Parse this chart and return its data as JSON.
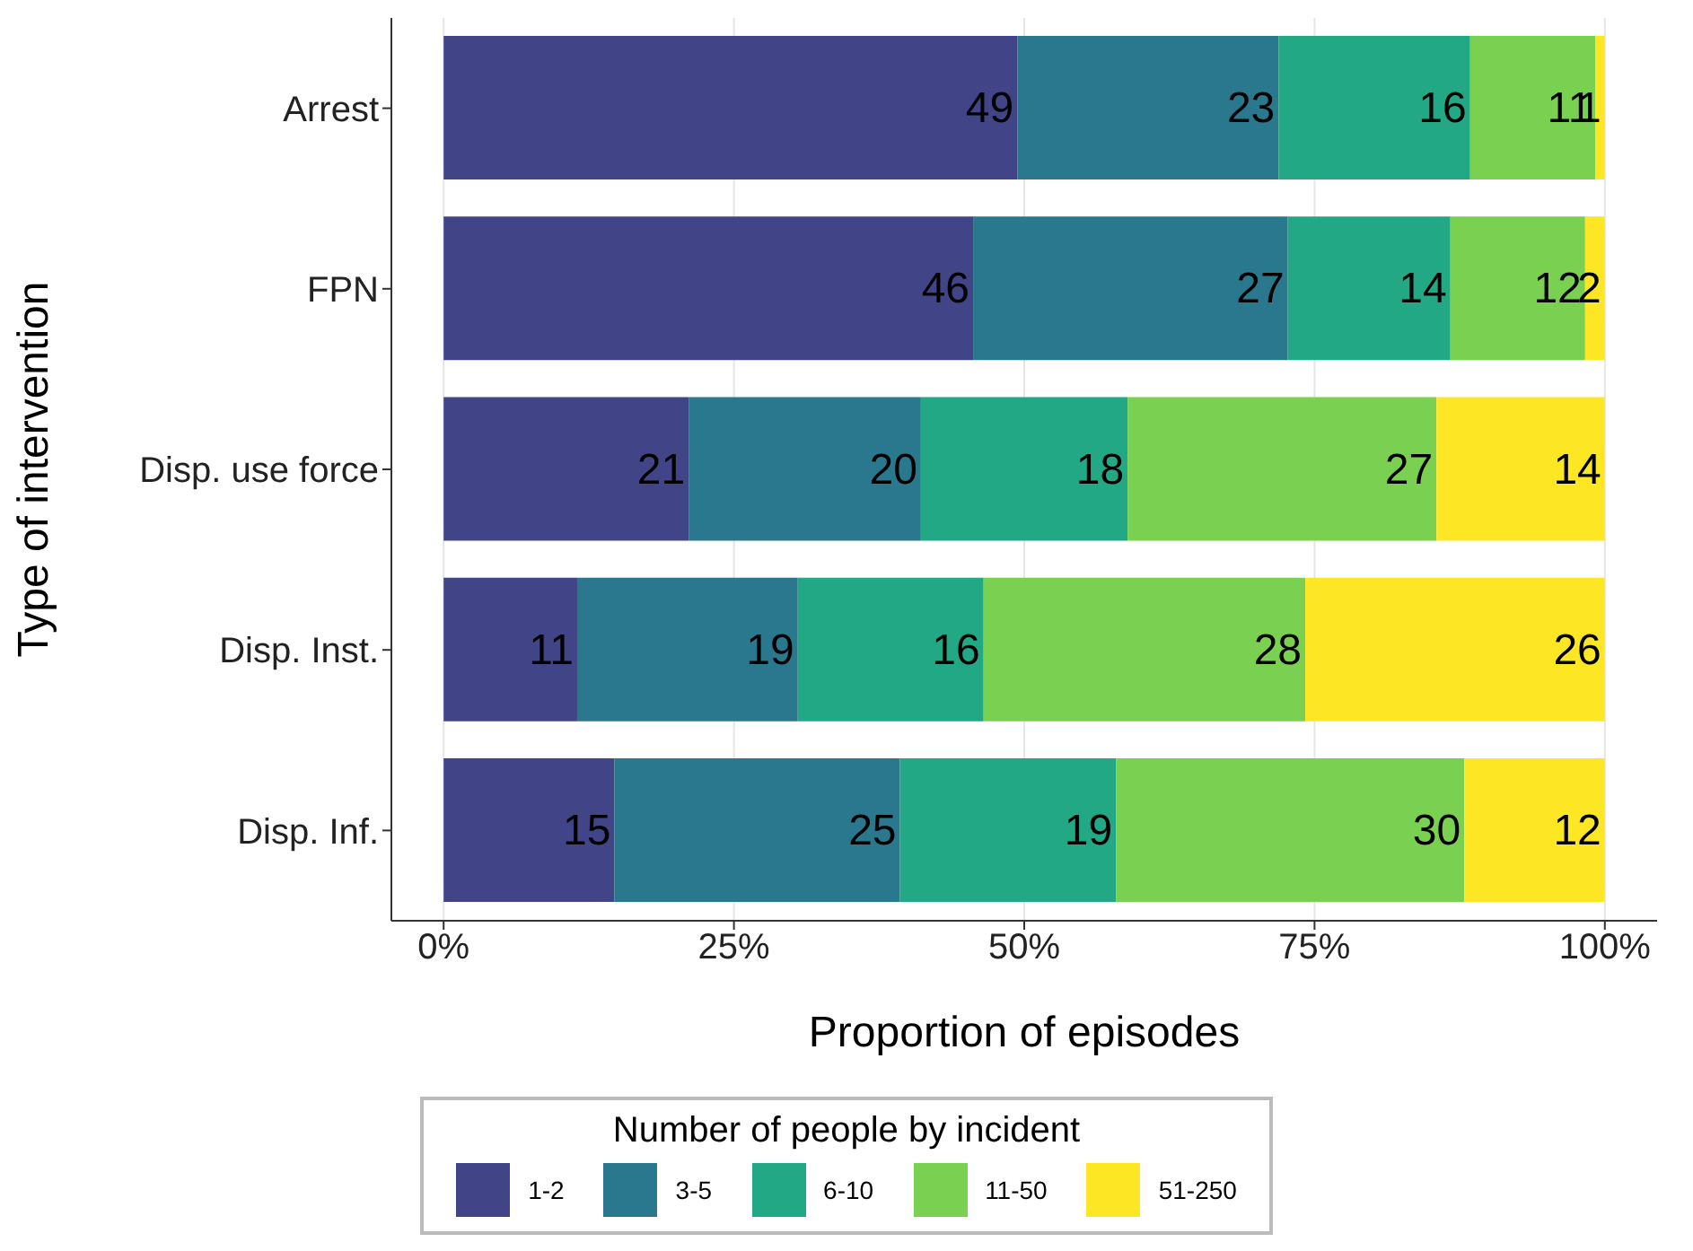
{
  "chart_data": {
    "type": "bar",
    "orientation": "horizontal",
    "stacked": true,
    "categories": [
      "Arrest",
      "FPN",
      "Disp. use force",
      "Disp. Inst.",
      "Disp. Inf."
    ],
    "series": [
      {
        "name": "1-2",
        "color": "#414487",
        "values": [
          49.4,
          45.6,
          21.1,
          11.5,
          14.7
        ],
        "value_labels": [
          "49",
          "46",
          "21",
          "11",
          "15"
        ]
      },
      {
        "name": "3-5",
        "color": "#2a788e",
        "values": [
          22.5,
          27.1,
          20.0,
          19.0,
          24.6
        ],
        "value_labels": [
          "23",
          "27",
          "20",
          "19",
          "25"
        ]
      },
      {
        "name": "6-10",
        "color": "#22a884",
        "values": [
          16.5,
          14.0,
          17.8,
          16.0,
          18.6
        ],
        "value_labels": [
          "16",
          "14",
          "18",
          "16",
          "19"
        ]
      },
      {
        "name": "11-50",
        "color": "#7ad151",
        "values": [
          10.8,
          11.6,
          26.6,
          27.7,
          30.0
        ],
        "value_labels": [
          "11",
          "12",
          "27",
          "28",
          "30"
        ]
      },
      {
        "name": "51-250",
        "color": "#fde725",
        "values": [
          0.8,
          1.7,
          14.5,
          25.8,
          12.1
        ],
        "value_labels": [
          "1",
          "2",
          "14",
          "26",
          "12"
        ]
      }
    ],
    "xlim": [
      -4.5,
      104.5
    ],
    "xticks": [
      {
        "value": 0,
        "label": "0%"
      },
      {
        "value": 25,
        "label": "25%"
      },
      {
        "value": 50,
        "label": "50%"
      },
      {
        "value": 75,
        "label": "75%"
      },
      {
        "value": 100,
        "label": "100%"
      }
    ],
    "xlabel": "Proportion of episodes",
    "ylabel": "Type of intervention",
    "legend_title": "Number of people by incident",
    "legend": "bottom",
    "grid": "x"
  }
}
